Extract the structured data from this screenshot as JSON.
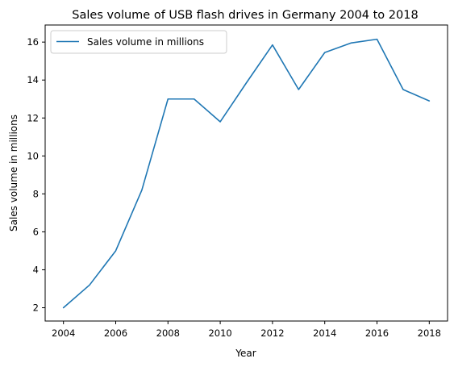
{
  "chart_data": {
    "type": "line",
    "title": "Sales volume of USB flash drives in Germany 2004 to 2018",
    "xlabel": "Year",
    "ylabel": "Sales volume in millions",
    "x": [
      2004,
      2005,
      2006,
      2007,
      2008,
      2009,
      2010,
      2011,
      2012,
      2013,
      2014,
      2015,
      2016,
      2017,
      2018
    ],
    "series": [
      {
        "name": "Sales volume in millions",
        "values": [
          2.0,
          3.2,
          5.0,
          8.2,
          13.0,
          13.0,
          11.8,
          13.85,
          15.85,
          13.5,
          15.45,
          15.95,
          16.15,
          13.5,
          12.9
        ],
        "color": "#1f77b4"
      }
    ],
    "xlim": [
      2003.3,
      2018.7
    ],
    "ylim": [
      1.3,
      16.9
    ],
    "xticks": [
      "2004",
      "2006",
      "2008",
      "2010",
      "2012",
      "2014",
      "2016",
      "2018"
    ],
    "yticks": [
      "2",
      "4",
      "6",
      "8",
      "10",
      "12",
      "14",
      "16"
    ],
    "legend_position": "top-left",
    "grid": false
  }
}
